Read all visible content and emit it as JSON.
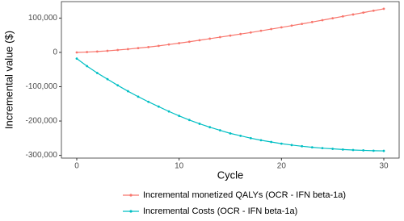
{
  "chart_data": {
    "type": "line",
    "x_label": "Cycle",
    "y_label": "Incremental value ($)",
    "x": [
      0,
      1,
      2,
      3,
      4,
      5,
      6,
      7,
      8,
      9,
      10,
      11,
      12,
      13,
      14,
      15,
      16,
      17,
      18,
      19,
      20,
      21,
      22,
      23,
      24,
      25,
      26,
      27,
      28,
      29,
      30
    ],
    "series": [
      {
        "name": "Incremental monetized QALYs (OCR - IFN beta-1a)",
        "color": "#F8766D",
        "values": [
          0,
          1000,
          2500,
          4500,
          7000,
          9500,
          12500,
          15500,
          19000,
          23000,
          27000,
          31000,
          35500,
          40000,
          44500,
          49000,
          53500,
          58000,
          63000,
          68000,
          73000,
          78000,
          83000,
          88500,
          94000,
          99500,
          105000,
          110500,
          116000,
          121500,
          127000
        ]
      },
      {
        "name": "Incremental Costs (OCR - IFN beta-1a)",
        "color": "#00BFC4",
        "values": [
          -18000,
          -40000,
          -60000,
          -78000,
          -96000,
          -113000,
          -129000,
          -144000,
          -158000,
          -172000,
          -185000,
          -197000,
          -208000,
          -218000,
          -227000,
          -236000,
          -243000,
          -250000,
          -256000,
          -261000,
          -266000,
          -270000,
          -273500,
          -276500,
          -279000,
          -281000,
          -283000,
          -284500,
          -285500,
          -286500,
          -287000
        ]
      }
    ],
    "xlim": [
      -1.5,
      31.5
    ],
    "xticks": [
      0,
      10,
      20,
      30
    ],
    "ylim": [
      -308000,
      148000
    ],
    "yticks": [
      {
        "value": -300000,
        "label": "-300,000"
      },
      {
        "value": -200000,
        "label": "-200,000"
      },
      {
        "value": -100000,
        "label": "-100,000"
      },
      0,
      {
        "value": 100000,
        "label": "100,000"
      }
    ],
    "grid": true,
    "legend": "bottom"
  }
}
